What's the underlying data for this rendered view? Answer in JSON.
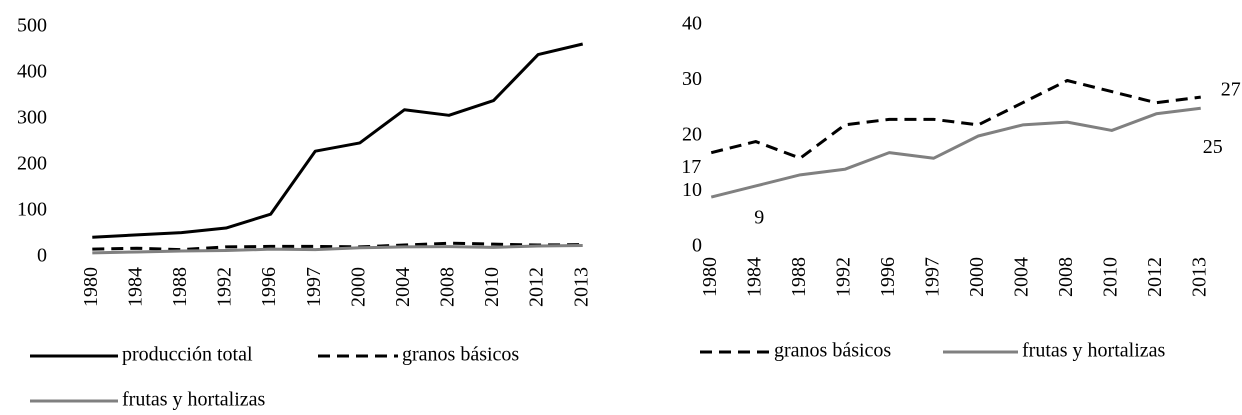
{
  "chart_data": [
    {
      "type": "line",
      "categories": [
        "1980",
        "1984",
        "1988",
        "1992",
        "1996",
        "1997",
        "2000",
        "2004",
        "2008",
        "2010",
        "2012",
        "2013"
      ],
      "ylim": [
        0,
        500
      ],
      "yticks": [
        0,
        100,
        200,
        300,
        400,
        500
      ],
      "grid": false,
      "series": [
        {
          "name": "producción total",
          "color": "#000000",
          "dash": false,
          "values": [
            43,
            48,
            53,
            63,
            93,
            230,
            248,
            320,
            308,
            340,
            440,
            463
          ]
        },
        {
          "name": "granos básicos",
          "color": "#000000",
          "dash": true,
          "values": [
            17,
            19,
            16,
            22,
            23,
            23,
            22,
            26,
            30,
            28,
            26,
            27
          ]
        },
        {
          "name": "frutas y hortalizas",
          "color": "#808080",
          "dash": false,
          "values": [
            9,
            11,
            13,
            14,
            17,
            16,
            20,
            22,
            22.5,
            21,
            24,
            25
          ]
        }
      ]
    },
    {
      "type": "line",
      "categories": [
        "1980",
        "1984",
        "1988",
        "1992",
        "1996",
        "1997",
        "2000",
        "2004",
        "2008",
        "2010",
        "2012",
        "2013"
      ],
      "ylim": [
        0,
        40
      ],
      "yticks": [
        0,
        10,
        20,
        30,
        40
      ],
      "grid": false,
      "series": [
        {
          "name": "granos básicos",
          "color": "#000000",
          "dash": true,
          "values": [
            17,
            19,
            16,
            22,
            23,
            23,
            22,
            26,
            30,
            28,
            26,
            27
          ],
          "value_labels": [
            "17",
            null,
            null,
            null,
            null,
            null,
            null,
            null,
            null,
            null,
            null,
            "27"
          ]
        },
        {
          "name": "frutas y hortalizas",
          "color": "#808080",
          "dash": false,
          "values": [
            9,
            11,
            13,
            14,
            17,
            16,
            20,
            22,
            22.5,
            21,
            24,
            25
          ],
          "value_labels": [
            "9",
            null,
            null,
            null,
            null,
            null,
            null,
            null,
            null,
            null,
            null,
            "25"
          ]
        }
      ]
    }
  ]
}
